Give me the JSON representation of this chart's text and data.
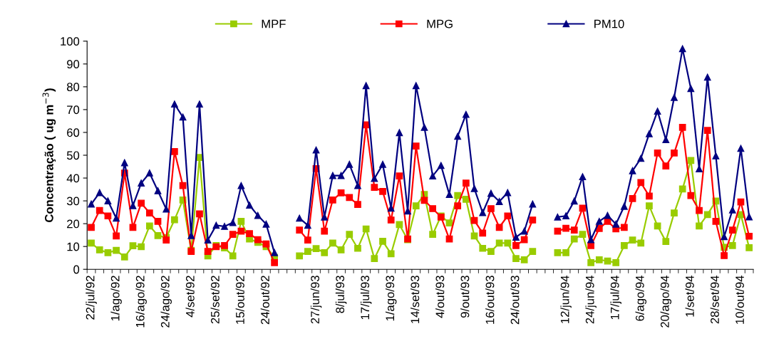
{
  "chart_data": {
    "type": "line",
    "ylabel": "Concentração ( ug m$^{−3}$)",
    "categories": [
      "22/jul/92",
      null,
      null,
      "1/ago/92",
      null,
      null,
      "16/ago/92",
      null,
      null,
      "24/ago/92",
      null,
      null,
      "4/set/92",
      null,
      null,
      "25/set/92",
      null,
      null,
      "15/out/92",
      null,
      null,
      "24/out/92",
      null,
      null,
      null,
      null,
      null,
      "27/jun/93",
      null,
      null,
      "8/jul/93",
      null,
      null,
      "17/jul/93",
      null,
      null,
      "1/ago/93",
      null,
      null,
      "14/set/93",
      null,
      null,
      "4/out/93",
      null,
      null,
      "9/out/93",
      null,
      null,
      "16/out/93",
      null,
      null,
      "24/out/93",
      null,
      null,
      null,
      null,
      null,
      "12/jun/94",
      null,
      null,
      "24/jun/94",
      null,
      null,
      "17/jul/94",
      null,
      null,
      "6/ago/94",
      null,
      null,
      "20/ago/94",
      null,
      null,
      "1/set/94",
      null,
      null,
      "28/set/94",
      null,
      null,
      "10/out/94",
      null
    ],
    "series": [
      {
        "name": "MPF",
        "color": "#99cc00",
        "marker": "square",
        "values": [
          11.5,
          8.5,
          7.3,
          8.3,
          5.4,
          10.3,
          9.9,
          19,
          14.8,
          13.9,
          21.7,
          30.4,
          8.3,
          49,
          5.9,
          10.4,
          9.4,
          5.9,
          21,
          13.3,
          11.8,
          9.9,
          5.2,
          null,
          null,
          5.9,
          7.8,
          9.1,
          7.3,
          11.5,
          8.5,
          15.3,
          9.2,
          17.7,
          4.7,
          12.3,
          6.8,
          19.6,
          13,
          27.8,
          32.8,
          15.3,
          23.4,
          20.3,
          32.3,
          30.7,
          14.6,
          9.2,
          7.8,
          11.5,
          11.5,
          4.7,
          4.2,
          7.8,
          null,
          null,
          7.3,
          7.3,
          13.3,
          15.3,
          2.9,
          4.2,
          3.6,
          2.9,
          10.4,
          12.8,
          11.5,
          27.8,
          19,
          12.2,
          24.7,
          35.2,
          47.7,
          19,
          24,
          29.9,
          9.6,
          10.4,
          24,
          9.5
        ]
      },
      {
        "name": "MPG",
        "color": "#ff0000",
        "marker": "square",
        "values": [
          18.4,
          25.8,
          23.4,
          14.6,
          42.2,
          18.4,
          29,
          24.7,
          21,
          12.8,
          51.6,
          36.7,
          7.8,
          24.3,
          7.8,
          9.9,
          10.4,
          15.3,
          16.7,
          15.6,
          13,
          11.1,
          2.9,
          null,
          null,
          17.2,
          12.8,
          44.1,
          16.7,
          30.4,
          33.5,
          31.5,
          28.4,
          63.3,
          35.9,
          34.1,
          21.6,
          40.9,
          13.3,
          54,
          30.2,
          26.6,
          22.9,
          13.3,
          27.8,
          37.8,
          21.4,
          15.9,
          26.6,
          18.4,
          23.4,
          10.4,
          13,
          21.6,
          null,
          null,
          16.7,
          18,
          17.2,
          26.8,
          10.4,
          17.9,
          21,
          17.7,
          18.4,
          31,
          38,
          32.1,
          51,
          45.3,
          51,
          62.2,
          32.3,
          25.8,
          60.9,
          21,
          6,
          17.2,
          29.5,
          14.5
        ]
      },
      {
        "name": "PM10",
        "color": "#000080",
        "marker": "triangle",
        "values": [
          28.6,
          33.6,
          30,
          22.4,
          46.7,
          27.9,
          37.8,
          42.2,
          34.4,
          26.4,
          72.4,
          66.7,
          14.8,
          72.4,
          12.8,
          19.3,
          18.8,
          20.5,
          36.7,
          28.1,
          23.6,
          19.8,
          7.3,
          null,
          null,
          22.4,
          19.3,
          52.3,
          22.9,
          41.1,
          41.1,
          46,
          36.7,
          80.5,
          39.8,
          46,
          26.8,
          59.9,
          25.5,
          80.5,
          62.2,
          40.9,
          45.5,
          32.8,
          58.3,
          67.9,
          35.4,
          24.8,
          33.3,
          29.7,
          33.6,
          14.1,
          16.7,
          28.6,
          null,
          null,
          22.9,
          23.4,
          29.9,
          40.6,
          13,
          21,
          23.6,
          19.8,
          27.6,
          43.2,
          48.6,
          59.4,
          69.3,
          56.8,
          75.3,
          96.7,
          79.2,
          44,
          84.2,
          49.7,
          14.3,
          26,
          53,
          23
        ]
      }
    ],
    "ylim": [
      0,
      100
    ],
    "yticks": [
      0,
      10,
      20,
      30,
      40,
      50,
      60,
      70,
      80,
      90,
      100
    ],
    "grid": false,
    "legend": "top",
    "line_style": "solid"
  }
}
